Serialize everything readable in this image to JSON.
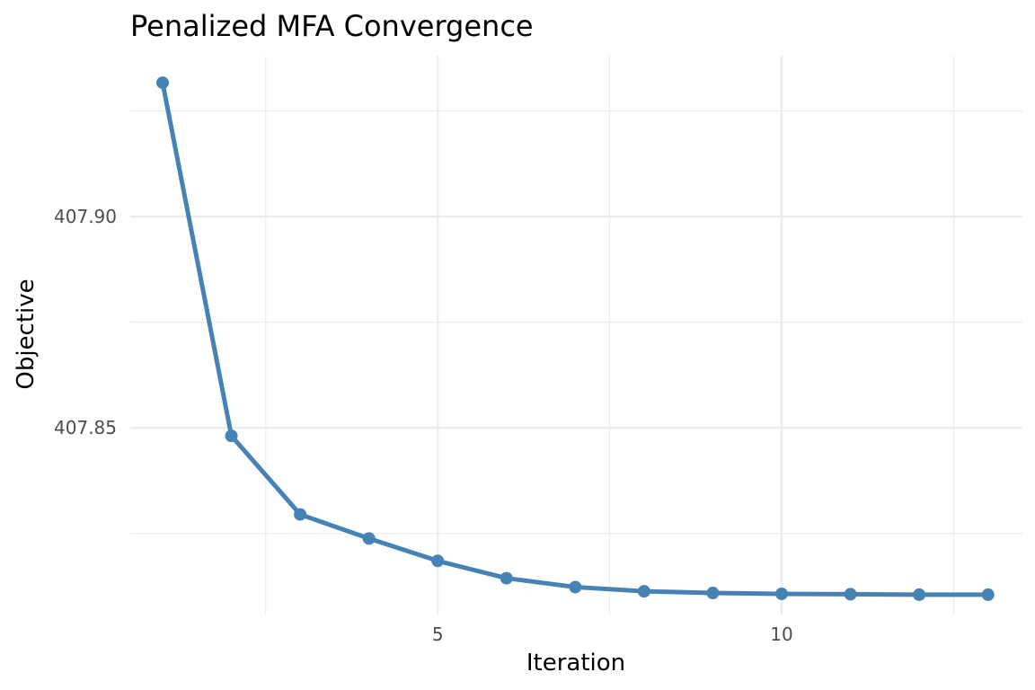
{
  "chart_data": {
    "type": "line",
    "title": "Penalized MFA Convergence",
    "xlabel": "Iteration",
    "ylabel": "Objective",
    "x": [
      1,
      2,
      3,
      4,
      5,
      6,
      7,
      8,
      9,
      10,
      11,
      12,
      13
    ],
    "series": [
      {
        "values": [
          407.9317,
          407.8481,
          407.8295,
          407.8238,
          407.8185,
          407.8144,
          407.8123,
          407.8113,
          407.8109,
          407.8107,
          407.8106,
          407.8105,
          407.8105
        ],
        "color": "#4682b4"
      }
    ],
    "x_ticks": [
      5,
      10
    ],
    "x_tick_labels": [
      "5",
      "10"
    ],
    "y_ticks": [
      407.85,
      407.9
    ],
    "y_tick_labels": [
      "407.85",
      "407.90"
    ],
    "xlim": [
      0.53,
      13.5
    ],
    "ylim": [
      407.8058,
      407.9381
    ],
    "grid": true,
    "grid_color": "#ebebeb",
    "legend": "none"
  }
}
